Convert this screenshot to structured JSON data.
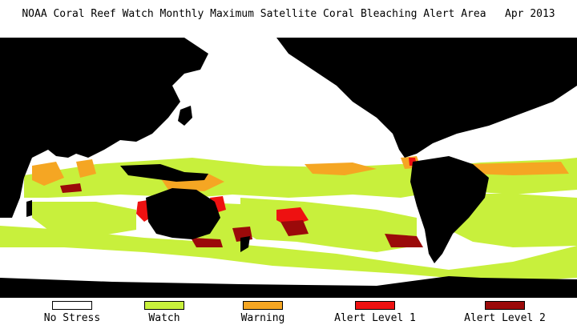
{
  "title": "NOAA Coral Reef Watch Monthly Maximum Satellite Coral Bleaching Alert Area",
  "date": "Apr 2013",
  "colors": {
    "land": "#000000",
    "no_stress": "#ffffff",
    "watch": "#c8f03c",
    "warning": "#f5a623",
    "alert1": "#ee1111",
    "alert2": "#9b0a0a"
  },
  "legend": [
    {
      "label": "No Stress",
      "color": "#ffffff"
    },
    {
      "label": "Watch",
      "color": "#c8f03c"
    },
    {
      "label": "Warning",
      "color": "#f5a623"
    },
    {
      "label": "Alert Level 1",
      "color": "#ee1111"
    },
    {
      "label": "Alert Level 2",
      "color": "#9b0a0a"
    }
  ]
}
